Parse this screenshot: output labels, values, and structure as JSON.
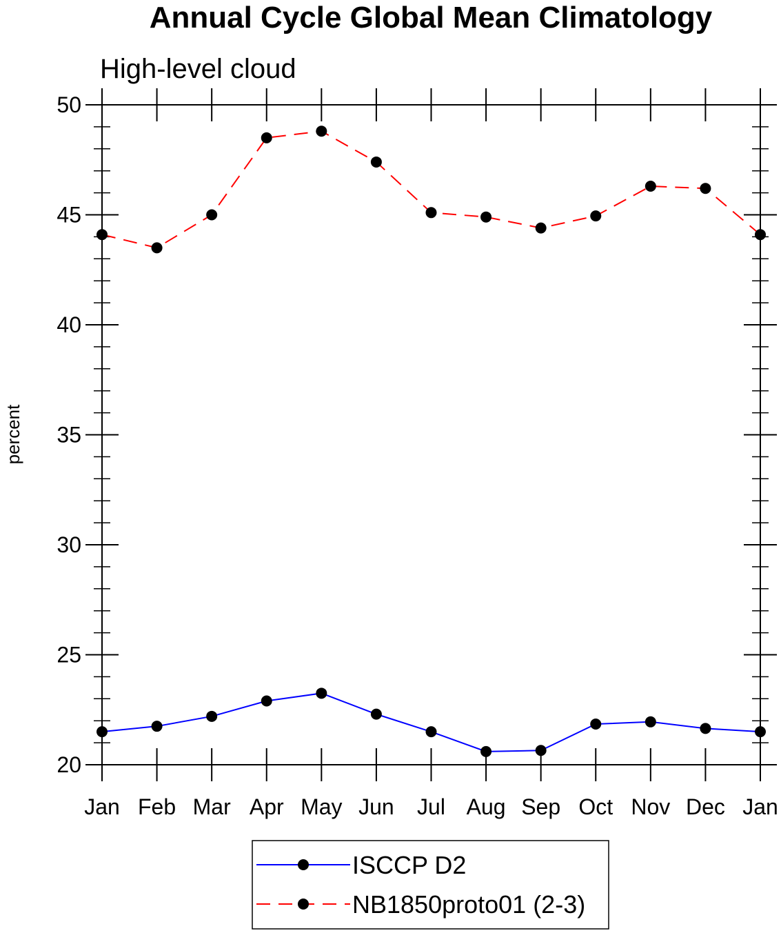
{
  "chart_data": {
    "type": "line",
    "title": "Annual Cycle Global Mean Climatology",
    "subtitle": "High-level cloud",
    "xlabel": "",
    "ylabel": "percent",
    "categories": [
      "Jan",
      "Feb",
      "Mar",
      "Apr",
      "May",
      "Jun",
      "Jul",
      "Aug",
      "Sep",
      "Oct",
      "Nov",
      "Dec",
      "Jan"
    ],
    "ylim": [
      20,
      50
    ],
    "yticks": [
      "20",
      "25",
      "30",
      "35",
      "40",
      "45",
      "50"
    ],
    "grid": false,
    "legend_position": "bottom",
    "series": [
      {
        "name": "ISCCP D2",
        "color": "#0000ff",
        "line_style": "solid",
        "marker": "circle",
        "values": [
          21.5,
          21.75,
          22.2,
          22.9,
          23.25,
          22.3,
          21.5,
          20.6,
          20.65,
          21.85,
          21.95,
          21.65,
          21.5
        ]
      },
      {
        "name": "NB1850proto01 (2-3)",
        "color": "#ff0000",
        "line_style": "dashed",
        "marker": "circle",
        "values": [
          44.1,
          43.5,
          45.0,
          48.5,
          48.8,
          47.4,
          45.1,
          44.9,
          44.4,
          44.95,
          46.3,
          46.2,
          44.1
        ]
      }
    ]
  }
}
